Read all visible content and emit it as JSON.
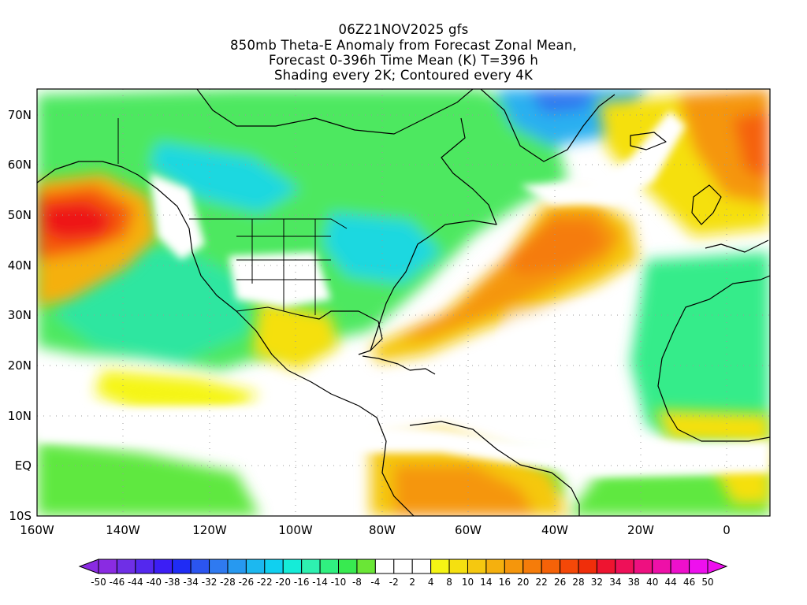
{
  "title": {
    "lines": [
      "06Z21NOV2025 gfs",
      "850mb Theta-E Anomaly from Forecast Zonal Mean,",
      "Forecast 0-396h Time Mean (K) T=396 h",
      "Shading every 2K; Contoured every 4K"
    ]
  },
  "map": {
    "lat_labels": [
      "70N",
      "60N",
      "50N",
      "40N",
      "30N",
      "20N",
      "10N",
      "EQ",
      "10S"
    ],
    "lon_labels": [
      "160W",
      "140W",
      "120W",
      "100W",
      "80W",
      "60W",
      "40W",
      "20W",
      "0"
    ],
    "lat_range": [
      -10,
      75
    ],
    "lon_range": [
      -160,
      10
    ]
  },
  "colorbar": {
    "labels": [
      "-50",
      "-46",
      "-44",
      "-40",
      "-38",
      "-34",
      "-32",
      "-28",
      "-26",
      "-22",
      "-20",
      "-16",
      "-14",
      "-10",
      "-8",
      "-4",
      "-2",
      "2",
      "4",
      "8",
      "10",
      "14",
      "16",
      "20",
      "22",
      "26",
      "28",
      "32",
      "34",
      "38",
      "40",
      "44",
      "46",
      "50"
    ],
    "colors": [
      "#8a2be2",
      "#6f2fe6",
      "#5428ee",
      "#3c1ef5",
      "#1f2cf5",
      "#2b55f0",
      "#2f7af0",
      "#2799f0",
      "#1cb8f0",
      "#10d0f0",
      "#15ecd8",
      "#2ef0b0",
      "#30f080",
      "#38ea50",
      "#6ae636",
      "#ffffff",
      "#ffffff",
      "#ffffff",
      "#f5f514",
      "#f5e010",
      "#f5c810",
      "#f5b00e",
      "#f5960c",
      "#f57c0a",
      "#f56208",
      "#f54808",
      "#f02e0a",
      "#ee1430",
      "#ee1058",
      "#ee1080",
      "#ee10a8",
      "#ee10cc",
      "#ee10ee"
    ],
    "low_arrow_color": "#8a2be2",
    "high_arrow_color": "#ee10ee"
  }
}
